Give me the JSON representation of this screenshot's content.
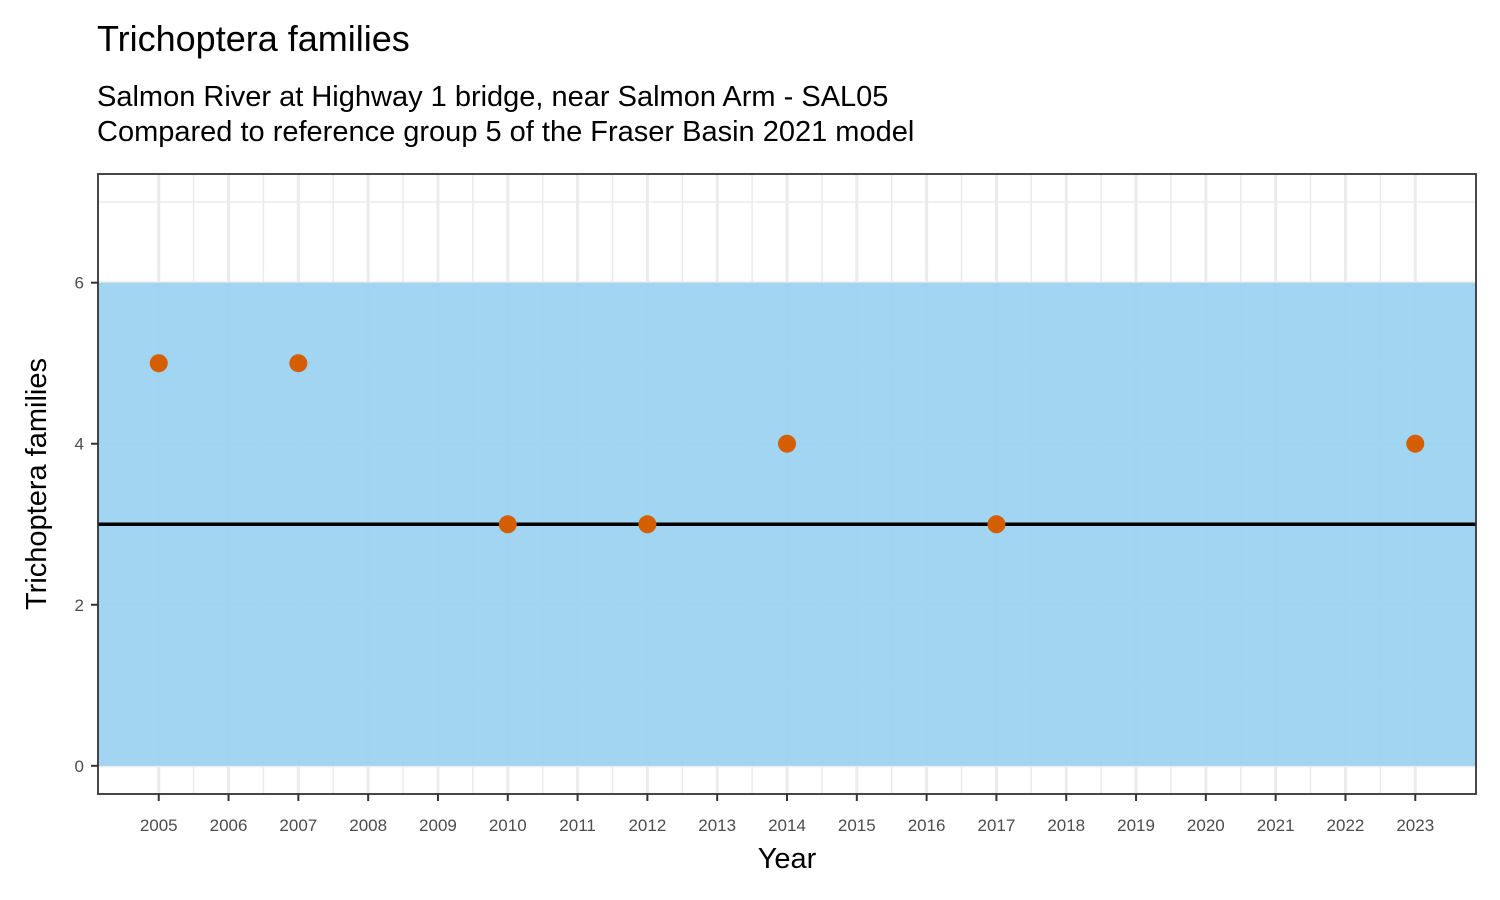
{
  "chart_data": {
    "type": "scatter",
    "title": "Trichoptera families",
    "subtitle_lines": [
      "Salmon River at Highway 1 bridge, near Salmon Arm - SAL05",
      "Compared to reference group 5 of the Fraser Basin 2021 model"
    ],
    "xlabel": "Year",
    "ylabel": "Trichoptera families",
    "x_ticks": [
      2005,
      2006,
      2007,
      2008,
      2009,
      2010,
      2011,
      2012,
      2013,
      2014,
      2015,
      2016,
      2017,
      2018,
      2019,
      2020,
      2021,
      2022,
      2023
    ],
    "y_ticks": [
      0,
      2,
      4,
      6
    ],
    "xlim": [
      2004.13,
      2023.87
    ],
    "ylim": [
      -0.35,
      7.35
    ],
    "reference_band": {
      "ymin": 0,
      "ymax": 6,
      "color": "#9ad2f0"
    },
    "reference_line": {
      "y": 3,
      "color": "#000000"
    },
    "point_color": "#d55e00",
    "grid": true,
    "points": [
      {
        "x": 2005,
        "y": 5
      },
      {
        "x": 2007,
        "y": 5
      },
      {
        "x": 2010,
        "y": 3
      },
      {
        "x": 2012,
        "y": 3
      },
      {
        "x": 2014,
        "y": 4
      },
      {
        "x": 2017,
        "y": 3
      },
      {
        "x": 2023,
        "y": 4
      }
    ]
  }
}
